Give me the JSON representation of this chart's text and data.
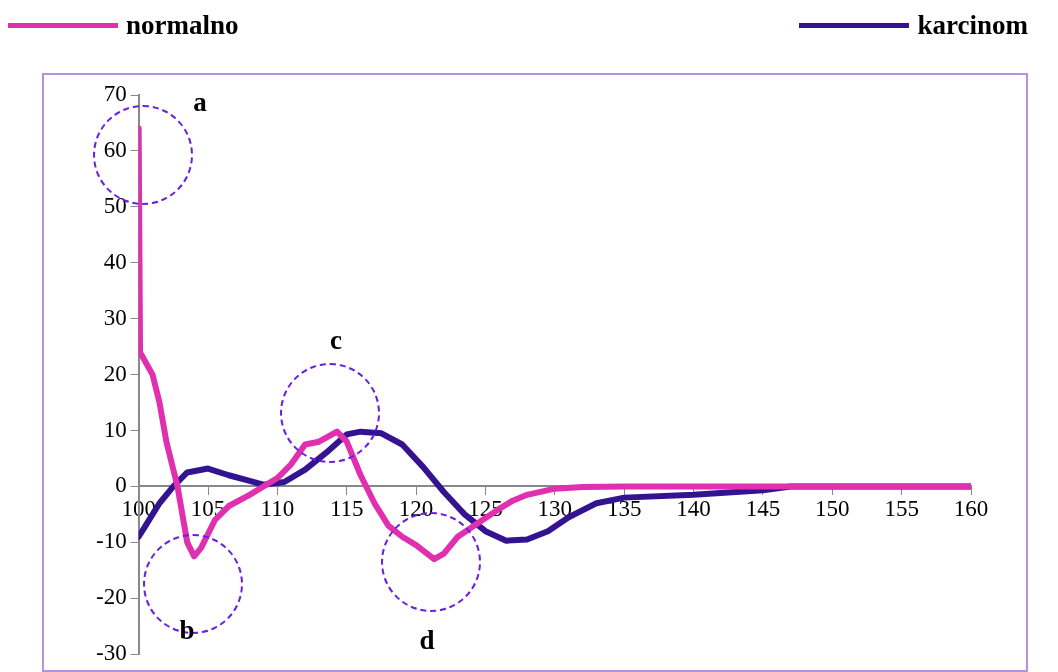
{
  "chart_data": {
    "type": "line",
    "xlim": [
      100,
      160
    ],
    "xticks": [
      100,
      105,
      110,
      115,
      120,
      125,
      130,
      135,
      140,
      145,
      150,
      155,
      160
    ],
    "ylim": [
      -30,
      70
    ],
    "yticks": [
      -30,
      -20,
      -10,
      0,
      10,
      20,
      30,
      40,
      50,
      60,
      70
    ],
    "grid": false,
    "legend": "top",
    "marker": "none",
    "line_style": "solid",
    "series": [
      {
        "name": "normalno",
        "color": "#e030b0",
        "x": [
          100,
          100.1,
          101,
          101.5,
          102,
          102.8,
          103.5,
          104,
          104.5,
          105.5,
          106.5,
          108,
          110,
          111,
          112,
          113,
          114.3,
          115,
          116,
          117,
          118,
          119,
          120,
          121.3,
          122,
          123,
          124.5,
          126,
          127,
          128,
          130,
          132,
          135,
          160
        ],
        "values": [
          64,
          24,
          20,
          15,
          8,
          0,
          -10,
          -12.5,
          -11,
          -6,
          -3.5,
          -1.5,
          1.5,
          4,
          7.5,
          8,
          9.8,
          8,
          2,
          -3,
          -7,
          -9,
          -10.5,
          -13,
          -12,
          -9,
          -6.5,
          -4,
          -2.5,
          -1.5,
          -0.4,
          -0.1,
          0,
          0
        ]
      },
      {
        "name": "karcinom",
        "color": "#33138f",
        "x": [
          100,
          100.5,
          101.5,
          102.5,
          103.5,
          105,
          106.5,
          108,
          109,
          110.5,
          112,
          113.5,
          115,
          116,
          117.5,
          119,
          120.5,
          122,
          123.5,
          125,
          126.5,
          128,
          129.5,
          131,
          133,
          135,
          140,
          145,
          147,
          160
        ],
        "values": [
          -9,
          -7,
          -3,
          0,
          2.5,
          3.2,
          2,
          1,
          0.3,
          0.8,
          3,
          6,
          9.3,
          9.8,
          9.5,
          7.5,
          3.5,
          -1,
          -5,
          -8,
          -9.7,
          -9.5,
          -8,
          -5.5,
          -3,
          -2,
          -1.5,
          -0.7,
          0,
          0
        ]
      }
    ],
    "annotations": [
      "a",
      "b",
      "c",
      "d"
    ]
  }
}
